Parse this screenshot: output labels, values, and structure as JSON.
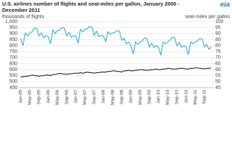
{
  "chart_data": {
    "type": "line",
    "title": "U.S. airlines number of flights and seat-miles per gallon, January 2005 -",
    "title_line2": "December 2011",
    "logo": "eia",
    "ylabel": "thousands of flights",
    "y2label": "seat-miles per gallon",
    "categories": [
      "Jan-05",
      null,
      null,
      null,
      "May-05",
      null,
      null,
      null,
      "Sep-05",
      null,
      null,
      null,
      "Jan-06",
      null,
      null,
      null,
      "May-06",
      null,
      null,
      null,
      "Sep-06",
      null,
      null,
      null,
      "Jan-07",
      null,
      null,
      null,
      "May-07",
      null,
      null,
      null,
      "Sep-07",
      null,
      null,
      null,
      "Jan-08",
      null,
      null,
      null,
      "May-08",
      null,
      null,
      null,
      "Sep-08",
      null,
      null,
      null,
      "Jan-09",
      null,
      null,
      null,
      "May-09",
      null,
      null,
      null,
      "Sep-09",
      null,
      null,
      null,
      "Jan-10",
      null,
      null,
      null,
      "May-10",
      null,
      null,
      null,
      "Sep-10",
      null,
      null,
      null,
      "Jan-11",
      null,
      null,
      null,
      "May-11",
      null,
      null,
      null,
      "Sep-11",
      null,
      null,
      null
    ],
    "series": [
      {
        "name": "thousands of flights",
        "color": "#29abe2",
        "axis": "y",
        "values": [
          860,
          800,
          905,
          880,
          905,
          915,
          945,
          945,
          880,
          905,
          865,
          885,
          875,
          815,
          930,
          900,
          925,
          930,
          950,
          945,
          880,
          910,
          870,
          880,
          880,
          820,
          935,
          915,
          935,
          940,
          960,
          955,
          885,
          920,
          875,
          885,
          880,
          835,
          915,
          895,
          905,
          910,
          925,
          920,
          845,
          860,
          815,
          830,
          800,
          730,
          830,
          810,
          830,
          840,
          865,
          860,
          790,
          820,
          785,
          800,
          790,
          720,
          830,
          815,
          830,
          845,
          870,
          865,
          800,
          825,
          785,
          800,
          790,
          725,
          830,
          815,
          830,
          840,
          860,
          855,
          790,
          810,
          770,
          790
        ]
      },
      {
        "name": "seat-miles per gallon",
        "color": "#0b1f3f",
        "axis": "y2",
        "values": [
          54,
          54,
          54.5,
          54.5,
          55,
          55.5,
          55,
          55,
          54.5,
          55,
          55,
          55.5,
          55.5,
          55,
          56,
          56,
          56.5,
          57,
          56.5,
          56.5,
          56,
          56.5,
          56.5,
          57,
          57,
          57,
          57.5,
          57,
          57.5,
          58,
          57.5,
          57.5,
          57,
          57.5,
          57.5,
          58,
          58,
          58,
          58.5,
          58.5,
          59,
          59,
          58.5,
          58.5,
          58,
          59,
          59,
          59.5,
          59,
          59,
          59.5,
          59.5,
          60,
          60,
          59.5,
          59.5,
          59.5,
          60,
          60,
          60.5,
          60,
          60,
          60.5,
          60.5,
          61,
          61,
          60.5,
          60.5,
          60.5,
          61,
          61,
          61,
          60.5,
          60.5,
          61,
          61,
          61.5,
          61.5,
          61,
          61,
          60.5,
          61,
          61,
          61.5
        ]
      }
    ],
    "ylim": [
      450,
      1000
    ],
    "yticks": [
      450,
      500,
      550,
      600,
      650,
      700,
      750,
      800,
      850,
      900,
      950,
      {
        "value": 1000,
        "label": "1,000"
      }
    ],
    "y2lim": [
      45,
      100
    ],
    "y2ticks": [
      45,
      50,
      55,
      60,
      65,
      70,
      75,
      80,
      85,
      90,
      95,
      100
    ],
    "grid": true
  }
}
